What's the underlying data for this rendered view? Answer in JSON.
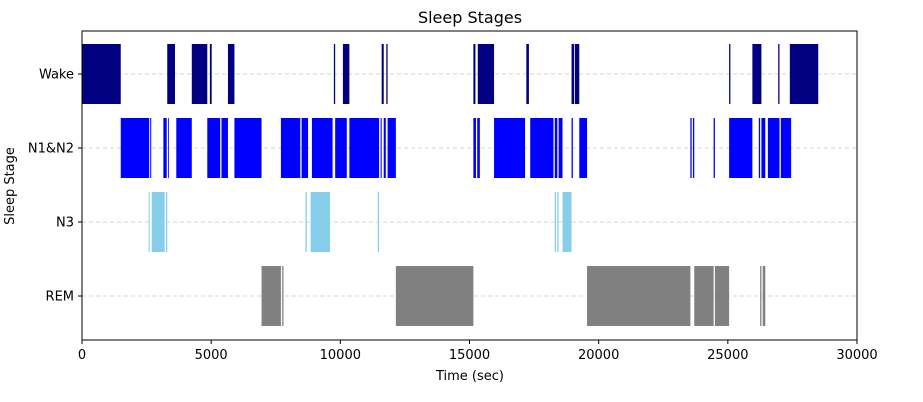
{
  "chart_data": {
    "type": "broken_bar_timeline",
    "title": "Sleep Stages",
    "xlabel": "Time (sec)",
    "ylabel": "Sleep Stage",
    "xlim": [
      0,
      30000
    ],
    "x_ticks": [
      0,
      5000,
      10000,
      15000,
      20000,
      25000,
      30000
    ],
    "x_tick_labels": [
      "0",
      "5000",
      "10000",
      "15000",
      "20000",
      "25000",
      "30000"
    ],
    "grid": "horizontal dashed at each stage",
    "stages": [
      {
        "name": "Wake",
        "color": "#000080",
        "segments": [
          [
            0,
            1500
          ],
          [
            3300,
            3600
          ],
          [
            4250,
            4850
          ],
          [
            4950,
            5020
          ],
          [
            5650,
            5900
          ],
          [
            9750,
            9800
          ],
          [
            10100,
            10350
          ],
          [
            11600,
            11680
          ],
          [
            11780,
            11830
          ],
          [
            15150,
            15230
          ],
          [
            15320,
            15950
          ],
          [
            17200,
            17300
          ],
          [
            18950,
            19050
          ],
          [
            19080,
            19250
          ],
          [
            25050,
            25100
          ],
          [
            25950,
            26300
          ],
          [
            26950,
            27000
          ],
          [
            27400,
            28500
          ]
        ]
      },
      {
        "name": "N1&N2",
        "color": "#0000FF",
        "segments": [
          [
            1500,
            2600
          ],
          [
            2640,
            2680
          ],
          [
            3150,
            3280
          ],
          [
            3330,
            3360
          ],
          [
            3650,
            4250
          ],
          [
            4850,
            5350
          ],
          [
            5400,
            5650
          ],
          [
            5900,
            6950
          ],
          [
            7700,
            8450
          ],
          [
            8500,
            8750
          ],
          [
            8900,
            9700
          ],
          [
            9800,
            10250
          ],
          [
            10350,
            11500
          ],
          [
            11560,
            11600
          ],
          [
            11680,
            11760
          ],
          [
            11830,
            12150
          ],
          [
            15150,
            15250
          ],
          [
            15300,
            15400
          ],
          [
            15950,
            17150
          ],
          [
            17350,
            18250
          ],
          [
            18300,
            18400
          ],
          [
            18450,
            18600
          ],
          [
            18950,
            19000
          ],
          [
            19250,
            19550
          ],
          [
            23550,
            23600
          ],
          [
            23650,
            23700
          ],
          [
            24450,
            24500
          ],
          [
            25050,
            25950
          ],
          [
            26200,
            26250
          ],
          [
            26300,
            26450
          ],
          [
            26550,
            27000
          ],
          [
            27050,
            27450
          ]
        ]
      },
      {
        "name": "N3",
        "color": "#87CEEB",
        "segments": [
          [
            2580,
            2620
          ],
          [
            2700,
            3200
          ],
          [
            3250,
            3300
          ],
          [
            8650,
            8700
          ],
          [
            8850,
            9600
          ],
          [
            11450,
            11500
          ],
          [
            18300,
            18350
          ],
          [
            18400,
            18450
          ],
          [
            18600,
            18950
          ]
        ]
      },
      {
        "name": "REM",
        "color": "#808080",
        "segments": [
          [
            6950,
            7700
          ],
          [
            7750,
            7800
          ],
          [
            12150,
            15150
          ],
          [
            19550,
            23550
          ],
          [
            23700,
            24450
          ],
          [
            24500,
            25050
          ],
          [
            26250,
            26300
          ],
          [
            26350,
            26450
          ]
        ]
      }
    ]
  }
}
